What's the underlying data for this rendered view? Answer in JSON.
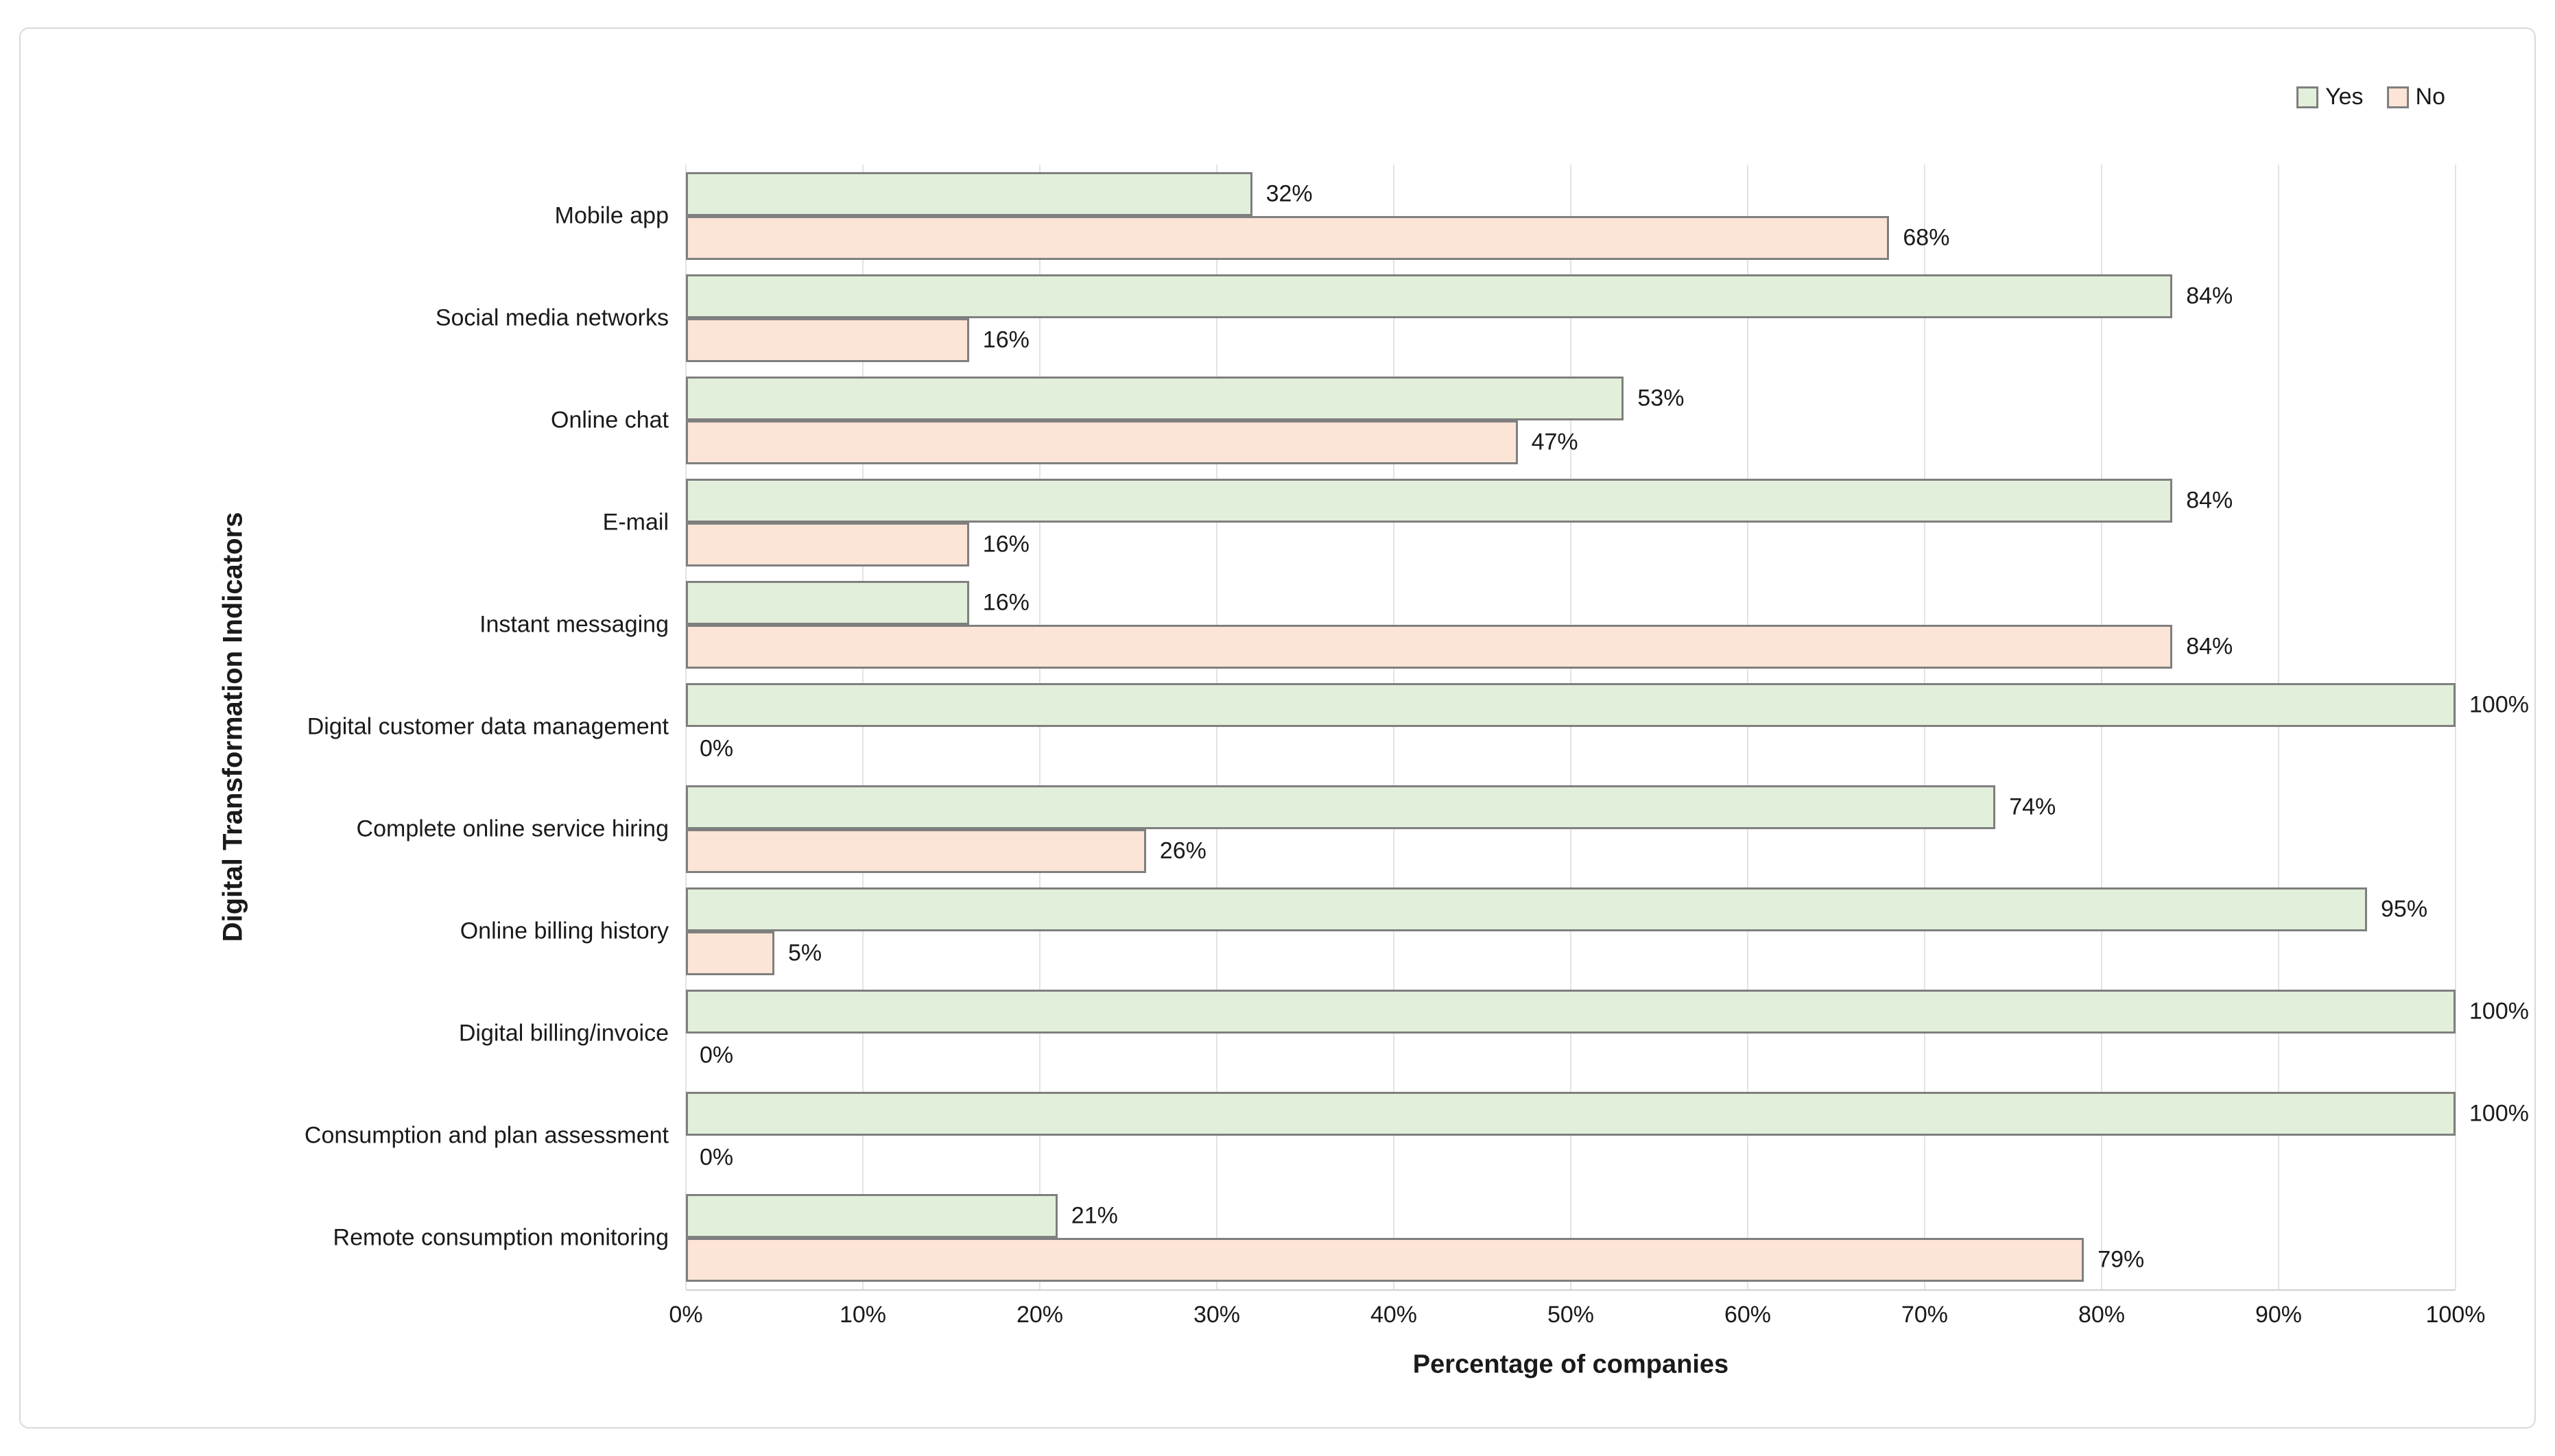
{
  "figure": {
    "background": "#ffffff",
    "border_color": "#d9d9d9"
  },
  "legend": {
    "items": [
      {
        "label": "Yes",
        "color": "#e2efda"
      },
      {
        "label": "No",
        "color": "#fce4d6"
      }
    ]
  },
  "chart_data": {
    "type": "bar",
    "orientation": "horizontal",
    "title": "",
    "xlabel": "Percentage of companies",
    "ylabel": "Digital Transformation Indicators",
    "categories": [
      "Mobile app",
      "Social media networks",
      "Online chat",
      "E-mail",
      "Instant messaging",
      "Digital customer data management",
      "Complete online service hiring",
      "Online billing history",
      "Digital billing/invoice",
      "Consumption and plan assessment",
      "Remote consumption monitoring"
    ],
    "series": [
      {
        "name": "Yes",
        "color": "#e2efda",
        "values": [
          32,
          84,
          53,
          84,
          16,
          100,
          74,
          95,
          100,
          100,
          21
        ]
      },
      {
        "name": "No",
        "color": "#fce4d6",
        "values": [
          68,
          16,
          47,
          16,
          84,
          0,
          26,
          5,
          0,
          0,
          79
        ]
      }
    ],
    "data_labels": {
      "Yes": [
        "32%",
        "84%",
        "53%",
        "84%",
        "16%",
        "100%",
        "74%",
        "95%",
        "100%",
        "100%",
        "21%"
      ],
      "No": [
        "68%",
        "16%",
        "47%",
        "16%",
        "84%",
        "0%",
        "26%",
        "5%",
        "0%",
        "0%",
        "79%"
      ]
    },
    "xlim": [
      0,
      100
    ],
    "x_ticks": [
      "0%",
      "10%",
      "20%",
      "30%",
      "40%",
      "50%",
      "60%",
      "70%",
      "80%",
      "90%",
      "100%"
    ],
    "gridlines": "vertical",
    "gridline_color": "#e3e3e3",
    "bar_border_color": "#7f7f7f",
    "legend_position": "top-right"
  }
}
